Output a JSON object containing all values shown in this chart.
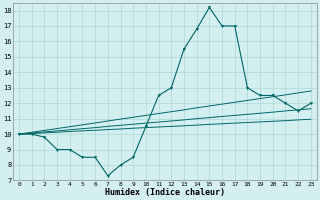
{
  "x": [
    0,
    1,
    2,
    3,
    4,
    5,
    6,
    7,
    8,
    9,
    10,
    11,
    12,
    13,
    14,
    15,
    16,
    17,
    18,
    19,
    20,
    21,
    22,
    23
  ],
  "y_main": [
    10,
    10,
    9.8,
    9,
    9,
    8.5,
    8.5,
    7.3,
    8.0,
    8.5,
    10.5,
    12.5,
    13.0,
    15.5,
    16.8,
    18.2,
    17.0,
    17.0,
    13.0,
    12.5,
    12.5,
    12.0,
    11.5,
    12.0
  ],
  "y_line1": [
    10.0,
    10.04,
    10.08,
    10.12,
    10.17,
    10.21,
    10.25,
    10.29,
    10.33,
    10.38,
    10.42,
    10.46,
    10.5,
    10.54,
    10.58,
    10.63,
    10.67,
    10.71,
    10.75,
    10.79,
    10.83,
    10.87,
    10.92,
    10.96
  ],
  "y_line2": [
    10.0,
    10.07,
    10.14,
    10.21,
    10.28,
    10.35,
    10.42,
    10.5,
    10.57,
    10.64,
    10.71,
    10.78,
    10.85,
    10.92,
    11.0,
    11.07,
    11.14,
    11.21,
    11.28,
    11.35,
    11.42,
    11.5,
    11.57,
    11.64
  ],
  "y_line3": [
    10.0,
    10.12,
    10.24,
    10.36,
    10.48,
    10.6,
    10.72,
    10.85,
    10.97,
    11.09,
    11.21,
    11.33,
    11.45,
    11.57,
    11.7,
    11.82,
    11.94,
    12.06,
    12.18,
    12.3,
    12.42,
    12.54,
    12.67,
    12.79
  ],
  "color": "#006666",
  "bg_color": "#d4efef",
  "grid_color": "#aed8d8",
  "xlabel": "Humidex (Indice chaleur)",
  "ylim": [
    7,
    18.5
  ],
  "xlim": [
    -0.5,
    23.5
  ],
  "yticks": [
    7,
    8,
    9,
    10,
    11,
    12,
    13,
    14,
    15,
    16,
    17,
    18
  ],
  "xticks": [
    0,
    1,
    2,
    3,
    4,
    5,
    6,
    7,
    8,
    9,
    10,
    11,
    12,
    13,
    14,
    15,
    16,
    17,
    18,
    19,
    20,
    21,
    22,
    23
  ]
}
